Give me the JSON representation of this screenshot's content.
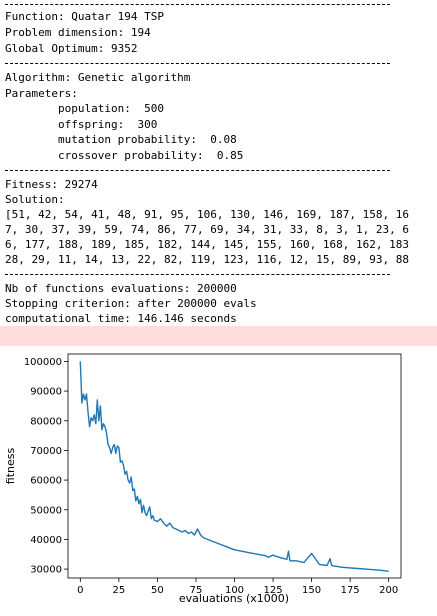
{
  "output": {
    "function_line": "Function: Quatar 194 TSP",
    "dimension_line": "Problem dimension: 194",
    "optimum_line": "Global Optimum: 9352",
    "algorithm_line": "Algorithm: Genetic algorithm",
    "parameters_line": "Parameters:",
    "param_population": "        population:  500",
    "param_offspring": "        offspring:  300",
    "param_mutation": "        mutation probability:  0.08",
    "param_crossover": "        crossover probability:  0.85",
    "fitness_line": "Fitness: 29274",
    "solution_line": "Solution:",
    "solution_rows": [
      "[51, 42, 54, 41, 48, 91, 95, 106, 130, 146, 169, 187, 158, 16",
      "7, 30, 37, 39, 59, 74, 86, 77, 69, 34, 31, 33, 8, 3, 1, 23, 6",
      "6, 177, 188, 189, 185, 182, 144, 145, 155, 160, 168, 162, 183",
      "28, 29, 11, 14, 13, 22, 82, 119, 123, 116, 12, 15, 89, 93, 88"
    ],
    "evals_line": "Nb of functions evaluations: 200000",
    "stop_line": "Stopping criterion: after 200000 evals",
    "time_line": "computational time: 146.146 seconds"
  },
  "chart_data": {
    "type": "line",
    "xlabel": "evaluations (x1000)",
    "ylabel": "fitness",
    "xlim": [
      -8,
      208
    ],
    "ylim": [
      27000,
      102500
    ],
    "xticks": [
      0,
      25,
      50,
      75,
      100,
      125,
      150,
      175,
      200
    ],
    "yticks": [
      30000,
      40000,
      50000,
      60000,
      70000,
      80000,
      90000,
      100000
    ],
    "line_color": "#1f77b4",
    "x": [
      0,
      1,
      2,
      3,
      4,
      5,
      6,
      7,
      8,
      9,
      10,
      11,
      12,
      13,
      14,
      15,
      16,
      17,
      18,
      19,
      20,
      21,
      22,
      23,
      24,
      25,
      26,
      27,
      28,
      29,
      30,
      31,
      32,
      33,
      34,
      35,
      36,
      37,
      38,
      39,
      40,
      41,
      42,
      43,
      44,
      45,
      46,
      47,
      48,
      50,
      52,
      54,
      56,
      58,
      60,
      62,
      64,
      66,
      68,
      70,
      72,
      74,
      76,
      78,
      80,
      85,
      90,
      95,
      100,
      105,
      110,
      115,
      120,
      122,
      125,
      130,
      134,
      135,
      136,
      140,
      145,
      150,
      155,
      160,
      162,
      163,
      165,
      170,
      175,
      180,
      185,
      190,
      195,
      200
    ],
    "y": [
      100000,
      86000,
      89000,
      87000,
      89000,
      83000,
      78000,
      81000,
      80000,
      82000,
      79000,
      87000,
      80000,
      85000,
      77000,
      79000,
      78000,
      76000,
      72000,
      71000,
      69000,
      71000,
      72000,
      69000,
      71500,
      71000,
      66000,
      66500,
      65000,
      62000,
      63000,
      60000,
      59000,
      61000,
      56500,
      57000,
      53000,
      54500,
      52000,
      53500,
      49000,
      51500,
      49000,
      48000,
      49500,
      51000,
      47000,
      48000,
      46500,
      46000,
      47000,
      45500,
      44500,
      45500,
      44000,
      43500,
      43000,
      42500,
      43000,
      42000,
      42500,
      41500,
      43500,
      41500,
      40500,
      39500,
      38500,
      37500,
      36500,
      36000,
      35500,
      35000,
      34500,
      34000,
      34700,
      33800,
      33300,
      36000,
      32800,
      32800,
      32200,
      35300,
      31600,
      31200,
      33500,
      31200,
      31000,
      30600,
      30400,
      30200,
      30000,
      29800,
      29600,
      29274
    ]
  }
}
